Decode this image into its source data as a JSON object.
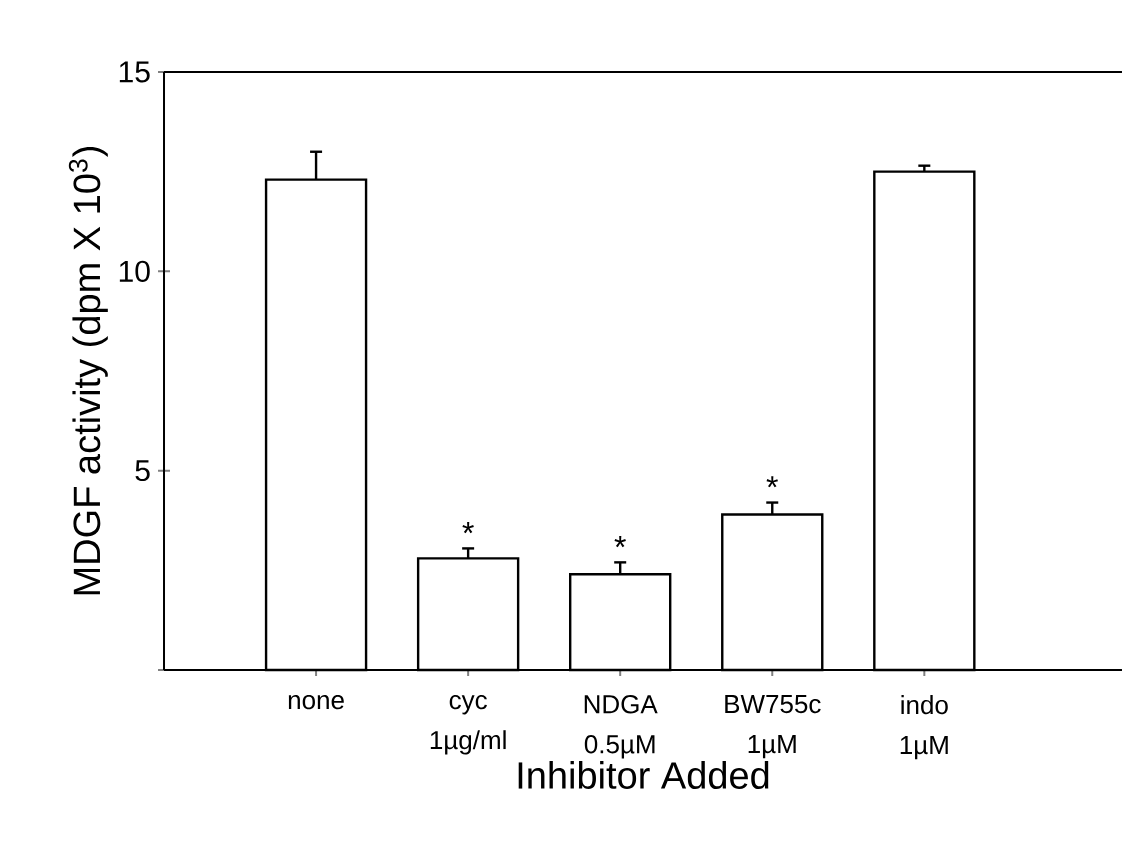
{
  "chart_data": {
    "type": "bar",
    "xlabel": "Inhibitor Added",
    "ylabel": "MDGF activity (dpm X 10$^{3}$)",
    "categories": [
      "none",
      "cyc 1µg/ml",
      "NDGA 0.5µM",
      "BW755c 1µM",
      "indo 1µM"
    ],
    "values": [
      12.3,
      2.8,
      2.4,
      3.9,
      12.5
    ],
    "errors": [
      0.7,
      0.25,
      0.3,
      0.3,
      0.15
    ],
    "color": "#000000",
    "ylim": [
      0,
      15
    ],
    "yticks": [
      {
        "value": 0,
        "label": null
      },
      5,
      10,
      15
    ],
    "annotations": [
      "*",
      "*",
      "*"
    ]
  }
}
